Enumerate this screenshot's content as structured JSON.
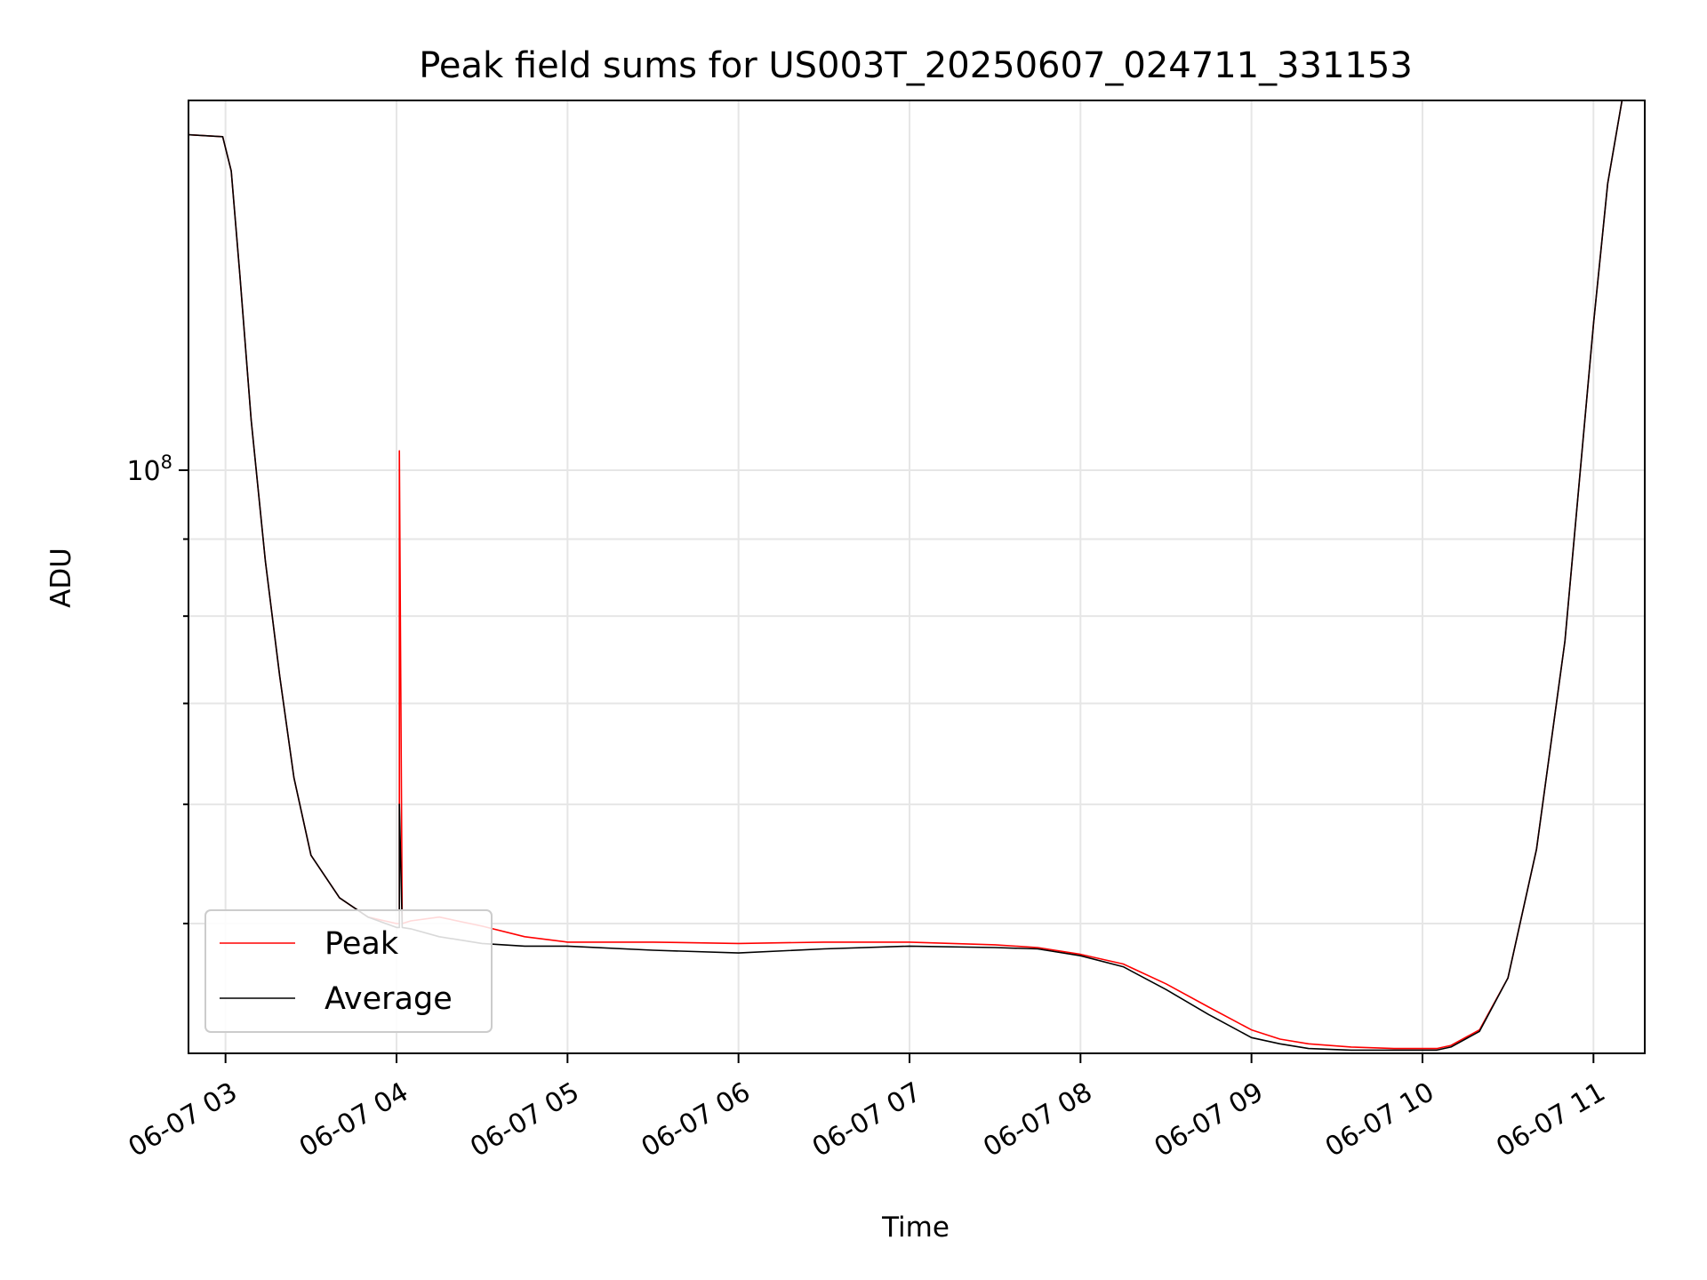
{
  "chart_data": {
    "type": "line",
    "title": "Peak field sums for US003T_20250607_024711_331153",
    "xlabel": "Time",
    "ylabel": "ADU",
    "yscale": "log",
    "xlim": [
      "2025-06-07 02:47",
      "2025-06-07 11:18"
    ],
    "ylim": [
      41000000,
      176000000
    ],
    "grid": true,
    "legend_position": "lower-left",
    "x_tick_labels": [
      "06-07 03",
      "06-07 04",
      "06-07 05",
      "06-07 06",
      "06-07 07",
      "06-07 08",
      "06-07 09",
      "06-07 10",
      "06-07 11"
    ],
    "y_tick_labels": [
      {
        "value": 100000000,
        "base": "10",
        "exp": "8"
      }
    ],
    "series": [
      {
        "name": "Peak",
        "color": "#ff0000",
        "x": [
          "02:47",
          "02:59",
          "03:02",
          "03:05",
          "03:09",
          "03:14",
          "03:19",
          "03:24",
          "03:30",
          "03:40",
          "03:50",
          "04:00",
          "04:01",
          "04:01",
          "04:02",
          "04:05",
          "04:15",
          "04:30",
          "04:45",
          "05:00",
          "05:30",
          "06:00",
          "06:30",
          "07:00",
          "07:30",
          "07:45",
          "08:00",
          "08:15",
          "08:30",
          "08:45",
          "09:00",
          "09:10",
          "09:20",
          "09:35",
          "09:50",
          "10:00",
          "10:05",
          "10:10",
          "10:20",
          "10:30",
          "10:40",
          "10:50",
          "11:00",
          "11:05",
          "11:10",
          "11:18"
        ],
        "y": [
          167000000,
          166500000,
          158000000,
          135000000,
          108000000,
          87000000,
          73000000,
          62500000,
          55500000,
          52000000,
          50500000,
          50000000,
          50000000,
          103000000,
          50000000,
          50200000,
          50500000,
          49800000,
          49000000,
          48600000,
          48600000,
          48500000,
          48600000,
          48600000,
          48400000,
          48200000,
          47700000,
          47000000,
          45600000,
          44000000,
          42500000,
          41900000,
          41600000,
          41400000,
          41300000,
          41300000,
          41300000,
          41500000,
          42500000,
          46000000,
          56000000,
          77000000,
          125000000,
          155000000,
          176000000,
          176000000
        ]
      },
      {
        "name": "Average",
        "color": "#000000",
        "x": [
          "02:47",
          "02:59",
          "03:02",
          "03:05",
          "03:09",
          "03:14",
          "03:19",
          "03:24",
          "03:30",
          "03:40",
          "03:50",
          "04:00",
          "04:01",
          "04:01",
          "04:02",
          "04:05",
          "04:15",
          "04:30",
          "04:45",
          "05:00",
          "05:30",
          "06:00",
          "06:30",
          "07:00",
          "07:30",
          "07:45",
          "08:00",
          "08:15",
          "08:30",
          "08:45",
          "09:00",
          "09:10",
          "09:20",
          "09:35",
          "09:50",
          "10:00",
          "10:05",
          "10:10",
          "10:20",
          "10:30",
          "10:40",
          "10:50",
          "11:00",
          "11:05",
          "11:10",
          "11:18"
        ],
        "y": [
          167000000,
          166500000,
          158000000,
          135000000,
          108000000,
          87000000,
          73000000,
          62500000,
          55500000,
          52000000,
          50500000,
          49700000,
          49700000,
          60000000,
          49700000,
          49600000,
          49000000,
          48500000,
          48300000,
          48300000,
          48000000,
          47800000,
          48100000,
          48300000,
          48200000,
          48100000,
          47600000,
          46800000,
          45200000,
          43500000,
          42000000,
          41600000,
          41300000,
          41200000,
          41200000,
          41200000,
          41200000,
          41400000,
          42400000,
          46000000,
          56000000,
          77000000,
          125000000,
          155000000,
          176000000,
          176000000
        ]
      }
    ]
  }
}
